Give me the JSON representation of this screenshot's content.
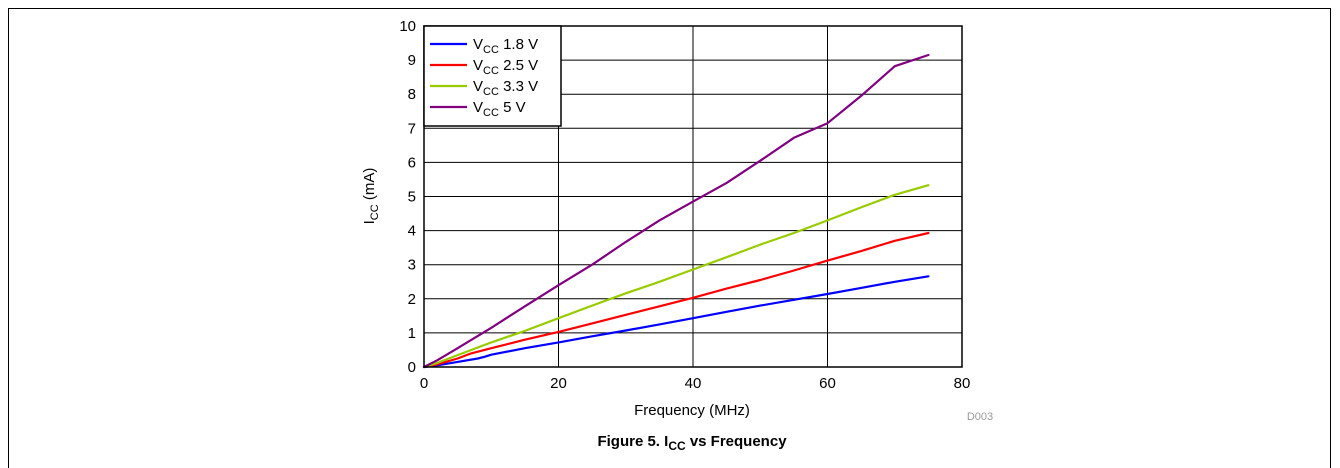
{
  "figure": {
    "caption_prefix": "Figure 5. I",
    "caption_sub": "CC",
    "caption_suffix": " vs Frequency",
    "code": "D003"
  },
  "chart_data": {
    "type": "line",
    "xlabel": "Frequency (MHz)",
    "ylabel_main": "I",
    "ylabel_sub": "CC",
    "ylabel_unit": " (mA)",
    "xlim": [
      0,
      80
    ],
    "ylim": [
      0,
      10
    ],
    "x_ticks": [
      "0",
      "20",
      "40",
      "60",
      "80"
    ],
    "y_ticks": [
      "0",
      "1",
      "2",
      "3",
      "4",
      "5",
      "6",
      "7",
      "8",
      "9",
      "10"
    ],
    "grid": true,
    "legend_position": "top-left",
    "series": [
      {
        "name_prefix": "V",
        "name_sub": "CC",
        "name_suffix": " 1.8 V",
        "color": "#0000ff",
        "points": [
          [
            0,
            0
          ],
          [
            2,
            0.05
          ],
          [
            5,
            0.15
          ],
          [
            8,
            0.25
          ],
          [
            9,
            0.3
          ],
          [
            10,
            0.36
          ],
          [
            15,
            0.55
          ],
          [
            20,
            0.72
          ],
          [
            25,
            0.9
          ],
          [
            30,
            1.07
          ],
          [
            35,
            1.25
          ],
          [
            40,
            1.43
          ],
          [
            45,
            1.62
          ],
          [
            50,
            1.8
          ],
          [
            55,
            1.97
          ],
          [
            60,
            2.14
          ],
          [
            65,
            2.32
          ],
          [
            70,
            2.5
          ],
          [
            75,
            2.66
          ]
        ]
      },
      {
        "name_prefix": "V",
        "name_sub": "CC",
        "name_suffix": " 2.5 V",
        "color": "#ff0000",
        "points": [
          [
            0,
            0
          ],
          [
            2,
            0.08
          ],
          [
            5,
            0.25
          ],
          [
            7,
            0.4
          ],
          [
            10,
            0.55
          ],
          [
            15,
            0.8
          ],
          [
            20,
            1.03
          ],
          [
            25,
            1.28
          ],
          [
            30,
            1.53
          ],
          [
            35,
            1.78
          ],
          [
            40,
            2.03
          ],
          [
            45,
            2.3
          ],
          [
            50,
            2.55
          ],
          [
            55,
            2.83
          ],
          [
            60,
            3.12
          ],
          [
            65,
            3.4
          ],
          [
            70,
            3.7
          ],
          [
            75,
            3.93
          ]
        ]
      },
      {
        "name_prefix": "V",
        "name_sub": "CC",
        "name_suffix": " 3.3 V",
        "color": "#99cc00",
        "points": [
          [
            0,
            0
          ],
          [
            2,
            0.12
          ],
          [
            5,
            0.35
          ],
          [
            10,
            0.72
          ],
          [
            15,
            1.06
          ],
          [
            20,
            1.43
          ],
          [
            25,
            1.8
          ],
          [
            30,
            2.16
          ],
          [
            35,
            2.5
          ],
          [
            40,
            2.86
          ],
          [
            45,
            3.22
          ],
          [
            50,
            3.59
          ],
          [
            55,
            3.93
          ],
          [
            60,
            4.3
          ],
          [
            65,
            4.68
          ],
          [
            70,
            5.05
          ],
          [
            75,
            5.33
          ]
        ]
      },
      {
        "name_prefix": "V",
        "name_sub": "CC",
        "name_suffix": " 5 V",
        "color": "#800080",
        "points": [
          [
            0,
            0
          ],
          [
            2,
            0.2
          ],
          [
            5,
            0.55
          ],
          [
            10,
            1.15
          ],
          [
            15,
            1.78
          ],
          [
            20,
            2.4
          ],
          [
            25,
            3.0
          ],
          [
            30,
            3.67
          ],
          [
            35,
            4.3
          ],
          [
            40,
            4.85
          ],
          [
            45,
            5.4
          ],
          [
            50,
            6.05
          ],
          [
            55,
            6.72
          ],
          [
            60,
            7.15
          ],
          [
            65,
            7.95
          ],
          [
            70,
            8.82
          ],
          [
            75,
            9.15
          ]
        ]
      }
    ]
  }
}
